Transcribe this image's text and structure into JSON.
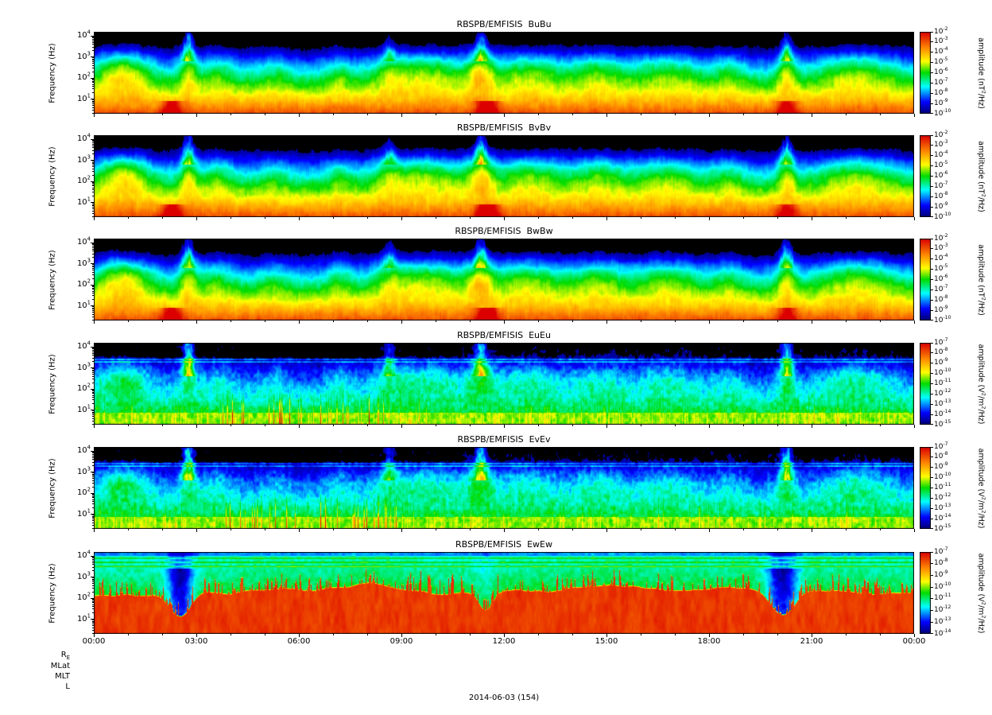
{
  "figure": {
    "date_label": "2014-06-03 (154)",
    "x_ticks": [
      "00:00",
      "03:00",
      "06:00",
      "09:00",
      "12:00",
      "15:00",
      "18:00",
      "21:00",
      "00:00"
    ],
    "ephemeris_labels": [
      "R_E",
      "MLat",
      "MLT",
      "L"
    ],
    "background": "#ffffff",
    "colormap_stops": [
      [
        0.0,
        "#000078"
      ],
      [
        0.14,
        "#0000ff"
      ],
      [
        0.33,
        "#00ffff"
      ],
      [
        0.5,
        "#00dc00"
      ],
      [
        0.64,
        "#ffff00"
      ],
      [
        0.8,
        "#ff8c00"
      ],
      [
        1.0,
        "#dc0000"
      ]
    ]
  },
  "render_shared": {
    "enhancements": [
      [
        0.035,
        0.035,
        0.3
      ],
      [
        0.115,
        0.012,
        0.25
      ],
      [
        0.15,
        0.022,
        0.15
      ],
      [
        0.22,
        0.02,
        0.1
      ],
      [
        0.3,
        0.018,
        0.12
      ],
      [
        0.36,
        0.02,
        0.12
      ],
      [
        0.405,
        0.055,
        0.22
      ],
      [
        0.472,
        0.016,
        0.28
      ],
      [
        0.53,
        0.042,
        0.2
      ],
      [
        0.615,
        0.035,
        0.18
      ],
      [
        0.7,
        0.042,
        0.18
      ],
      [
        0.775,
        0.02,
        0.13
      ],
      [
        0.845,
        0.012,
        0.26
      ],
      [
        0.93,
        0.052,
        0.22
      ]
    ],
    "burst_times": [
      [
        0.115,
        0.9
      ],
      [
        0.36,
        0.5
      ],
      [
        0.472,
        0.85
      ],
      [
        0.845,
        0.75
      ]
    ],
    "bottom_hotspots": [
      [
        0.095,
        0.012,
        0.28
      ],
      [
        0.48,
        0.013,
        0.32
      ],
      [
        0.845,
        0.012,
        0.22
      ]
    ],
    "uh_lines_log10": [
      3.3,
      3.42
    ],
    "ewew_lines_log10": [
      3.52,
      3.72,
      3.92
    ],
    "ewew_cutoff": {
      "base_log10": 2.2,
      "bumps": [
        [
          0.32,
          0.12,
          0.4
        ],
        [
          0.62,
          0.1,
          0.3
        ],
        [
          0.76,
          0.07,
          0.25
        ]
      ],
      "dips": [
        [
          0.105,
          0.018,
          1.2
        ],
        [
          0.478,
          0.012,
          0.9
        ],
        [
          0.84,
          0.02,
          1.1
        ]
      ]
    }
  },
  "chart_data": [
    {
      "type": "heatmap",
      "title": "RBSPB/EMFISIS  BuBu",
      "ylabel": "Frequency (Hz)",
      "y_ticks": [
        "10^1",
        "10^2",
        "10^3",
        "10^4"
      ],
      "freq_range_log10_hz": [
        0.3,
        4.2
      ],
      "time_range": [
        "00:00",
        "24:00"
      ],
      "colorbar": {
        "label": "amplitude (nT^2/Hz)",
        "ticks": [
          "10^-2",
          "10^-3",
          "10^-4",
          "10^-5",
          "10^-6",
          "10^-7",
          "10^-8",
          "10^-9",
          "10^-10"
        ],
        "range_log10": [
          -10,
          -2
        ]
      },
      "render": {
        "style": "magnetic",
        "seed": 1
      }
    },
    {
      "type": "heatmap",
      "title": "RBSPB/EMFISIS  BvBv",
      "ylabel": "Frequency (Hz)",
      "y_ticks": [
        "10^1",
        "10^2",
        "10^3",
        "10^4"
      ],
      "freq_range_log10_hz": [
        0.3,
        4.2
      ],
      "time_range": [
        "00:00",
        "24:00"
      ],
      "colorbar": {
        "label": "amplitude (nT^2/Hz)",
        "ticks": [
          "10^-2",
          "10^-3",
          "10^-4",
          "10^-5",
          "10^-6",
          "10^-7",
          "10^-8",
          "10^-9",
          "10^-10"
        ],
        "range_log10": [
          -10,
          -2
        ]
      },
      "render": {
        "style": "magnetic",
        "seed": 2
      }
    },
    {
      "type": "heatmap",
      "title": "RBSPB/EMFISIS  BwBw",
      "ylabel": "Frequency (Hz)",
      "y_ticks": [
        "10^1",
        "10^2",
        "10^3",
        "10^4"
      ],
      "freq_range_log10_hz": [
        0.3,
        4.2
      ],
      "time_range": [
        "00:00",
        "24:00"
      ],
      "colorbar": {
        "label": "amplitude (nT^2/Hz)",
        "ticks": [
          "10^-2",
          "10^-3",
          "10^-4",
          "10^-5",
          "10^-6",
          "10^-7",
          "10^-8",
          "10^-9",
          "10^-10"
        ],
        "range_log10": [
          -10,
          -2
        ]
      },
      "render": {
        "style": "magnetic",
        "seed": 3
      }
    },
    {
      "type": "heatmap",
      "title": "RBSPB/EMFISIS  EuEu",
      "ylabel": "Frequency (Hz)",
      "y_ticks": [
        "10^1",
        "10^2",
        "10^3",
        "10^4"
      ],
      "freq_range_log10_hz": [
        0.3,
        4.2
      ],
      "time_range": [
        "00:00",
        "24:00"
      ],
      "colorbar": {
        "label": "amplitude (V^2/m^2/Hz)",
        "ticks": [
          "10^-7",
          "10^-8",
          "10^-9",
          "10^-10",
          "10^-11",
          "10^-12",
          "10^-13",
          "10^-14",
          "10^-15"
        ],
        "range_log10": [
          -15,
          -7
        ]
      },
      "render": {
        "style": "electric",
        "seed": 4
      }
    },
    {
      "type": "heatmap",
      "title": "RBSPB/EMFISIS  EvEv",
      "ylabel": "Frequency (Hz)",
      "y_ticks": [
        "10^1",
        "10^2",
        "10^3",
        "10^4"
      ],
      "freq_range_log10_hz": [
        0.3,
        4.2
      ],
      "time_range": [
        "00:00",
        "24:00"
      ],
      "colorbar": {
        "label": "amplitude (V^2/m^2/Hz)",
        "ticks": [
          "10^-7",
          "10^-8",
          "10^-9",
          "10^-10",
          "10^-11",
          "10^-12",
          "10^-13",
          "10^-14",
          "10^-15"
        ],
        "range_log10": [
          -15,
          -7
        ]
      },
      "render": {
        "style": "electric",
        "seed": 5
      }
    },
    {
      "type": "heatmap",
      "title": "RBSPB/EMFISIS  EwEw",
      "ylabel": "Frequency (Hz)",
      "y_ticks": [
        "10^1",
        "10^2",
        "10^3",
        "10^4"
      ],
      "freq_range_log10_hz": [
        0.3,
        4.2
      ],
      "time_range": [
        "00:00",
        "24:00"
      ],
      "colorbar": {
        "label": "amplitude (V^2/m^2/Hz)",
        "ticks": [
          "10^-7",
          "10^-8",
          "10^-9",
          "10^-10",
          "10^-11",
          "10^-12",
          "10^-13",
          "10^-14"
        ],
        "range_log10": [
          -14,
          -7
        ]
      },
      "render": {
        "style": "ewew",
        "seed": 6
      }
    }
  ]
}
